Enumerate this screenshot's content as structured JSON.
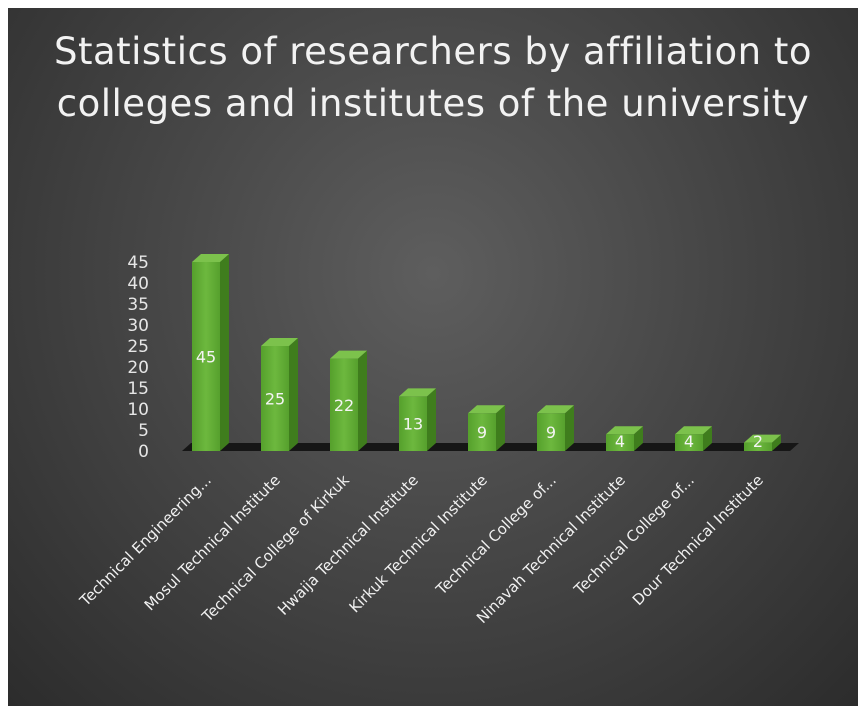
{
  "chart_data": {
    "type": "bar",
    "title": "Statistics of researchers by affiliation to colleges and institutes of the university",
    "categories": [
      "Technical Engineering...",
      "Mosul Technical Institute",
      "Technical  College of Kirkuk",
      "Hwaija Technical Institute",
      "Kirkuk Technical Institute",
      "Technical  College of...",
      "Ninavah Technical Institute",
      "Technical College of...",
      "Dour Technical Institute"
    ],
    "values": [
      45,
      25,
      22,
      13,
      9,
      9,
      4,
      4,
      2
    ],
    "yticks": [
      "0",
      "5",
      "10",
      "15",
      "20",
      "25",
      "30",
      "35",
      "40",
      "45"
    ],
    "ylim": [
      0,
      45
    ],
    "xlabel": "",
    "ylabel": "",
    "grid": false,
    "legend": "none",
    "style": "3d-column",
    "colors": {
      "bar_front": "#5fa833",
      "bar_side": "#3f7d1d",
      "bar_top": "#7cc24c",
      "floor": "#161616",
      "background": "#474747",
      "text": "#f2f2f2"
    }
  }
}
